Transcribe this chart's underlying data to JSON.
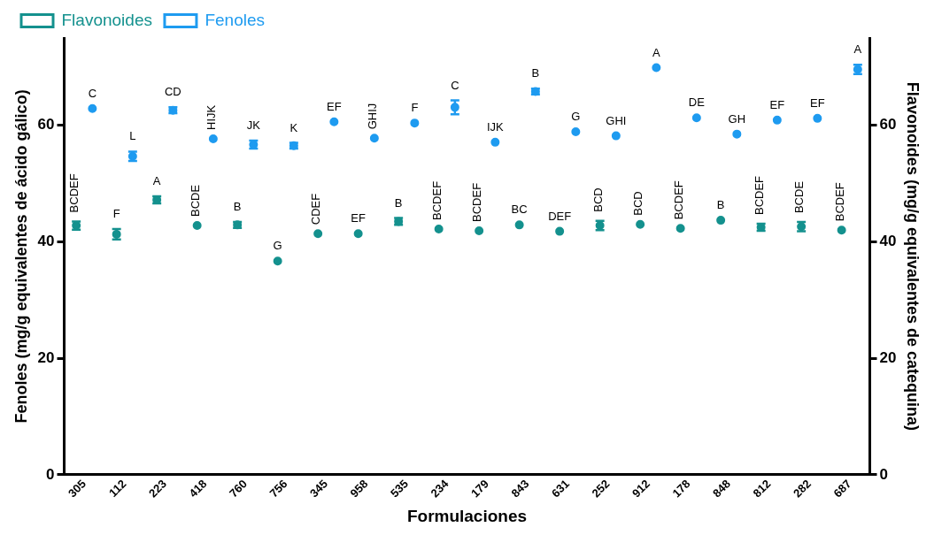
{
  "chart_data": {
    "type": "scatter",
    "xlabel": "Formulaciones",
    "ylabel": "Fenoles (mg/g equivalentes de ácido gálico)",
    "y2label": "Flavonoides (mg/g equivalentes de catequina)",
    "categories": [
      "305",
      "112",
      "223",
      "418",
      "760",
      "756",
      "345",
      "958",
      "535",
      "234",
      "179",
      "843",
      "631",
      "252",
      "912",
      "178",
      "848",
      "812",
      "282",
      "687"
    ],
    "series": [
      {
        "name": "Flavonoides",
        "color": "#14918e",
        "values": [
          42.8,
          41.3,
          47.2,
          42.8,
          42.9,
          36.7,
          41.4,
          41.4,
          43.5,
          42.2,
          41.9,
          42.9,
          41.8,
          42.8,
          43.0,
          42.3,
          43.7,
          42.5,
          42.6,
          42.0
        ],
        "errors": [
          0.7,
          0.9,
          0.6,
          null,
          0.5,
          null,
          null,
          null,
          0.6,
          null,
          null,
          null,
          null,
          0.8,
          null,
          null,
          null,
          0.6,
          0.8,
          null
        ],
        "value_labels": [
          "BCDEF",
          "F",
          "A",
          "BCDE",
          "B",
          "G",
          "CDEF",
          "EF",
          "B",
          "BCDEF",
          "BCDEF",
          "BC",
          "DEF",
          "BCD",
          "BCD",
          "BCDEF",
          "B",
          "BCDEF",
          "BCDE",
          "BCDEF"
        ]
      },
      {
        "name": "Fenoles",
        "color": "#1e9bf0",
        "values": [
          62.9,
          54.7,
          62.6,
          57.7,
          56.7,
          56.5,
          60.6,
          57.8,
          60.4,
          63.1,
          57.1,
          65.8,
          58.9,
          58.2,
          69.9,
          61.3,
          58.5,
          60.9,
          61.2,
          69.6
        ],
        "errors": [
          null,
          0.8,
          0.5,
          null,
          0.7,
          0.5,
          null,
          null,
          null,
          1.2,
          null,
          0.5,
          null,
          null,
          null,
          null,
          null,
          null,
          null,
          0.8
        ],
        "value_labels": [
          "C",
          "L",
          "CD",
          "HIJK",
          "JK",
          "K",
          "EF",
          "GHIJ",
          "F",
          "C",
          "IJK",
          "B",
          "G",
          "GHI",
          "A",
          "DE",
          "GH",
          "EF",
          "EF",
          "A"
        ]
      }
    ],
    "ylim": [
      0,
      75
    ],
    "yticks": [
      0,
      20,
      40,
      60
    ],
    "y2lim": [
      0,
      75
    ],
    "y2ticks": [
      0,
      20,
      40,
      60
    ],
    "grid": false,
    "legend": "top left",
    "marker": "circle"
  }
}
